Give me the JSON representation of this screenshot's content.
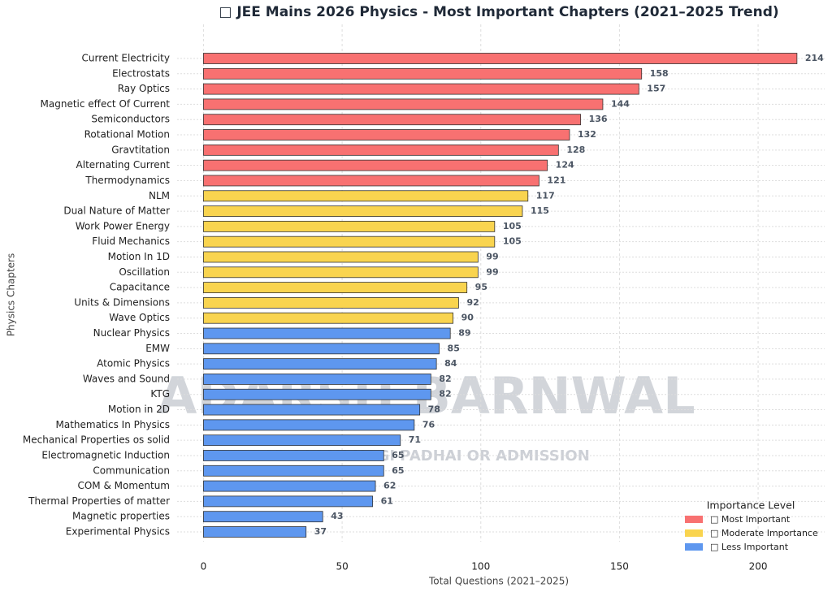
{
  "chart_data": {
    "type": "hbar",
    "title": "□ JEE Mains 2026 Physics - Most Important Chapters (2021–2025 Trend)",
    "x_label": "Total Questions (2021–2025)",
    "y_label": "Physics Chapters",
    "watermark": "ADARSH BARNWAL",
    "watermark_tagline": "AB AASAN HOGI PADHAI OR ADMISSION",
    "legend_title": "Importance Level",
    "legend_position": "lower right",
    "grid": true,
    "xlim": [
      -9.5,
      224
    ],
    "xticks": [
      0,
      50,
      100,
      150,
      200
    ],
    "categories": [
      "Current Electricity",
      "Electrostats",
      "Ray Optics",
      "Magnetic effect Of Current",
      "Semiconductors",
      "Rotational Motion",
      "Gravtitation",
      "Alternating Current",
      "Thermodynamics",
      "NLM",
      "Dual Nature of Matter",
      "Work Power Energy",
      "Fluid Mechanics",
      "Motion In 1D",
      "Oscillation",
      "Capacitance",
      "Units & Dimensions",
      "Wave Optics",
      "Nuclear Physics",
      "EMW",
      "Atomic Physics",
      "Waves and Sound",
      "KTG",
      "Motion in 2D",
      "Mathematics In Physics",
      "Mechanical Properties os solid",
      "Electromagnetic Induction",
      "Communication",
      "COM & Momentum",
      "Thermal Properties of matter",
      "Magnetic properties",
      "Experimental Physics"
    ],
    "series": [
      {
        "name": "□ Most Important",
        "color": "#f87171",
        "values": [
          214,
          158,
          157,
          144,
          136,
          132,
          128,
          124,
          121,
          null,
          null,
          null,
          null,
          null,
          null,
          null,
          null,
          null,
          null,
          null,
          null,
          null,
          null,
          null,
          null,
          null,
          null,
          null,
          null,
          null,
          null,
          null
        ]
      },
      {
        "name": "□ Moderate Importance",
        "color": "#f9d44f",
        "values": [
          null,
          null,
          null,
          null,
          null,
          null,
          null,
          null,
          null,
          117,
          115,
          105,
          105,
          99,
          99,
          95,
          92,
          90,
          null,
          null,
          null,
          null,
          null,
          null,
          null,
          null,
          null,
          null,
          null,
          null,
          null,
          null
        ]
      },
      {
        "name": "□ Less Important",
        "color": "#5e97ef",
        "values": [
          null,
          null,
          null,
          null,
          null,
          null,
          null,
          null,
          null,
          null,
          null,
          null,
          null,
          null,
          null,
          null,
          null,
          null,
          89,
          85,
          84,
          82,
          82,
          78,
          76,
          71,
          65,
          65,
          62,
          61,
          43,
          37
        ]
      }
    ]
  }
}
